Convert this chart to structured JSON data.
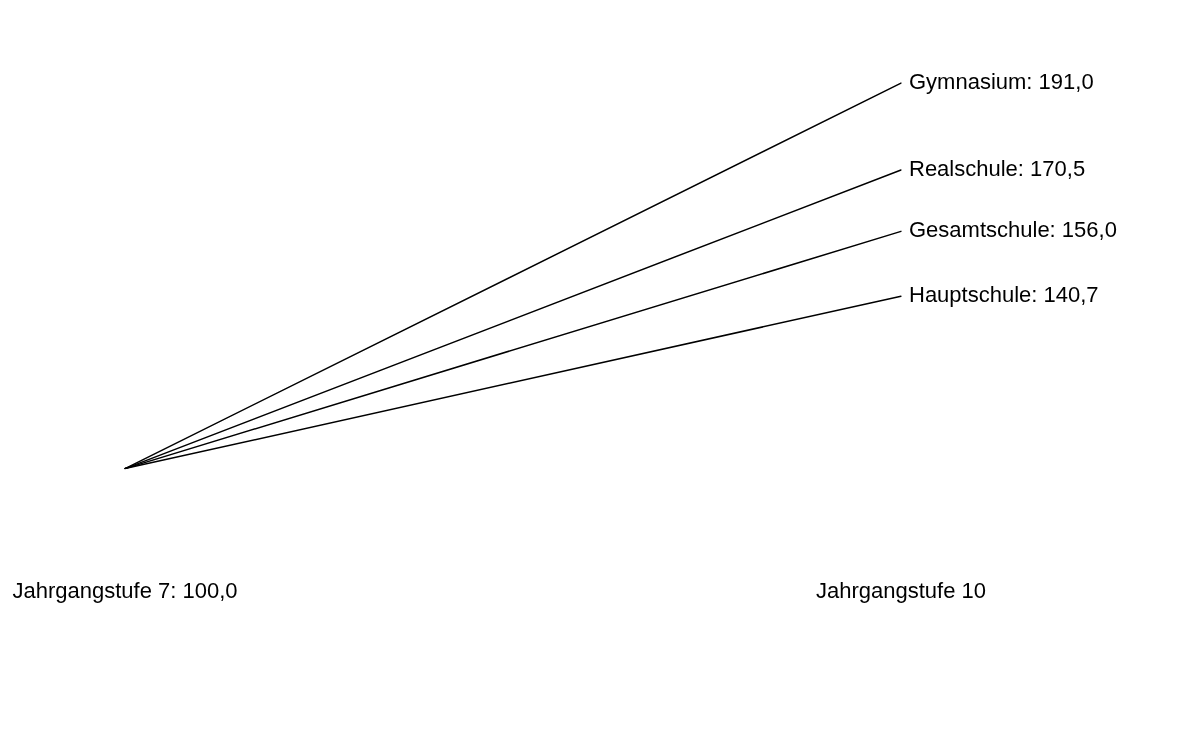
{
  "chart_data": {
    "type": "line",
    "categories": [
      "Jahrgangstufe 7: 100,0",
      "Jahrgangstufe 10"
    ],
    "series": [
      {
        "color": "#000000",
        "values": [
          100,
          191.0
        ],
        "value_labels": [
          null,
          "Gymnasium: 191,0"
        ]
      },
      {
        "color": "#000000",
        "values": [
          100,
          170.5
        ],
        "value_labels": [
          null,
          "Realschule: 170,5"
        ]
      },
      {
        "color": "#000000",
        "values": [
          100,
          156.0
        ],
        "value_labels": [
          null,
          "Gesamtschule: 156,0"
        ]
      },
      {
        "color": "#000000",
        "values": [
          100,
          140.7
        ],
        "value_labels": [
          null,
          "Hauptschule: 140,7"
        ]
      }
    ],
    "tick_labels": "x",
    "legend": false,
    "marker": "none",
    "line_style": "solid"
  }
}
